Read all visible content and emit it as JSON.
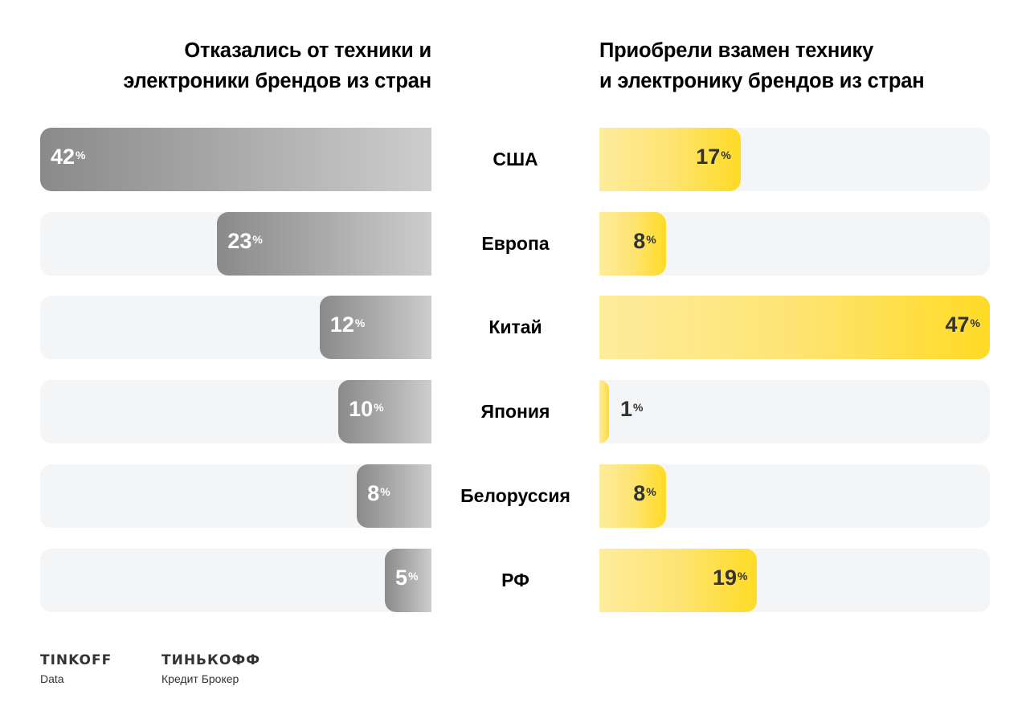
{
  "titles": {
    "left": "Отказались от техники и электроники брендов из стран",
    "left_line1": "Отказались от техники и",
    "left_line2": "электроники брендов из стран",
    "right_line1": "Приобрели взамен технику",
    "right_line2": "и электронику брендов из стран"
  },
  "percent_sign": "%",
  "colors": {
    "left_bar_start": "#8a8a8a",
    "left_bar_end": "#cdcdcd",
    "right_bar_start": "#fdec9c",
    "right_bar_end": "#ffdb25",
    "track": "#f4f5f7"
  },
  "chart_data": {
    "type": "bar",
    "orientation": "horizontal-butterfly",
    "categories": [
      "США",
      "Европа",
      "Китай",
      "Япония",
      "Белоруссия",
      "РФ"
    ],
    "series": [
      {
        "name": "Отказались от техники и электроники брендов из стран",
        "side": "left",
        "values": [
          42,
          23,
          12,
          10,
          8,
          5
        ]
      },
      {
        "name": "Приобрели взамен технику и электронику брендов из стран",
        "side": "right",
        "values": [
          17,
          8,
          47,
          1,
          8,
          19
        ]
      }
    ],
    "unit": "%",
    "grid": false,
    "legend": "none"
  },
  "footer": {
    "logo1_brand": "TINKOFF",
    "logo1_sub": "Data",
    "logo2_brand": "ТИНЬКОФФ",
    "logo2_sub": "Кредит Брокер"
  }
}
